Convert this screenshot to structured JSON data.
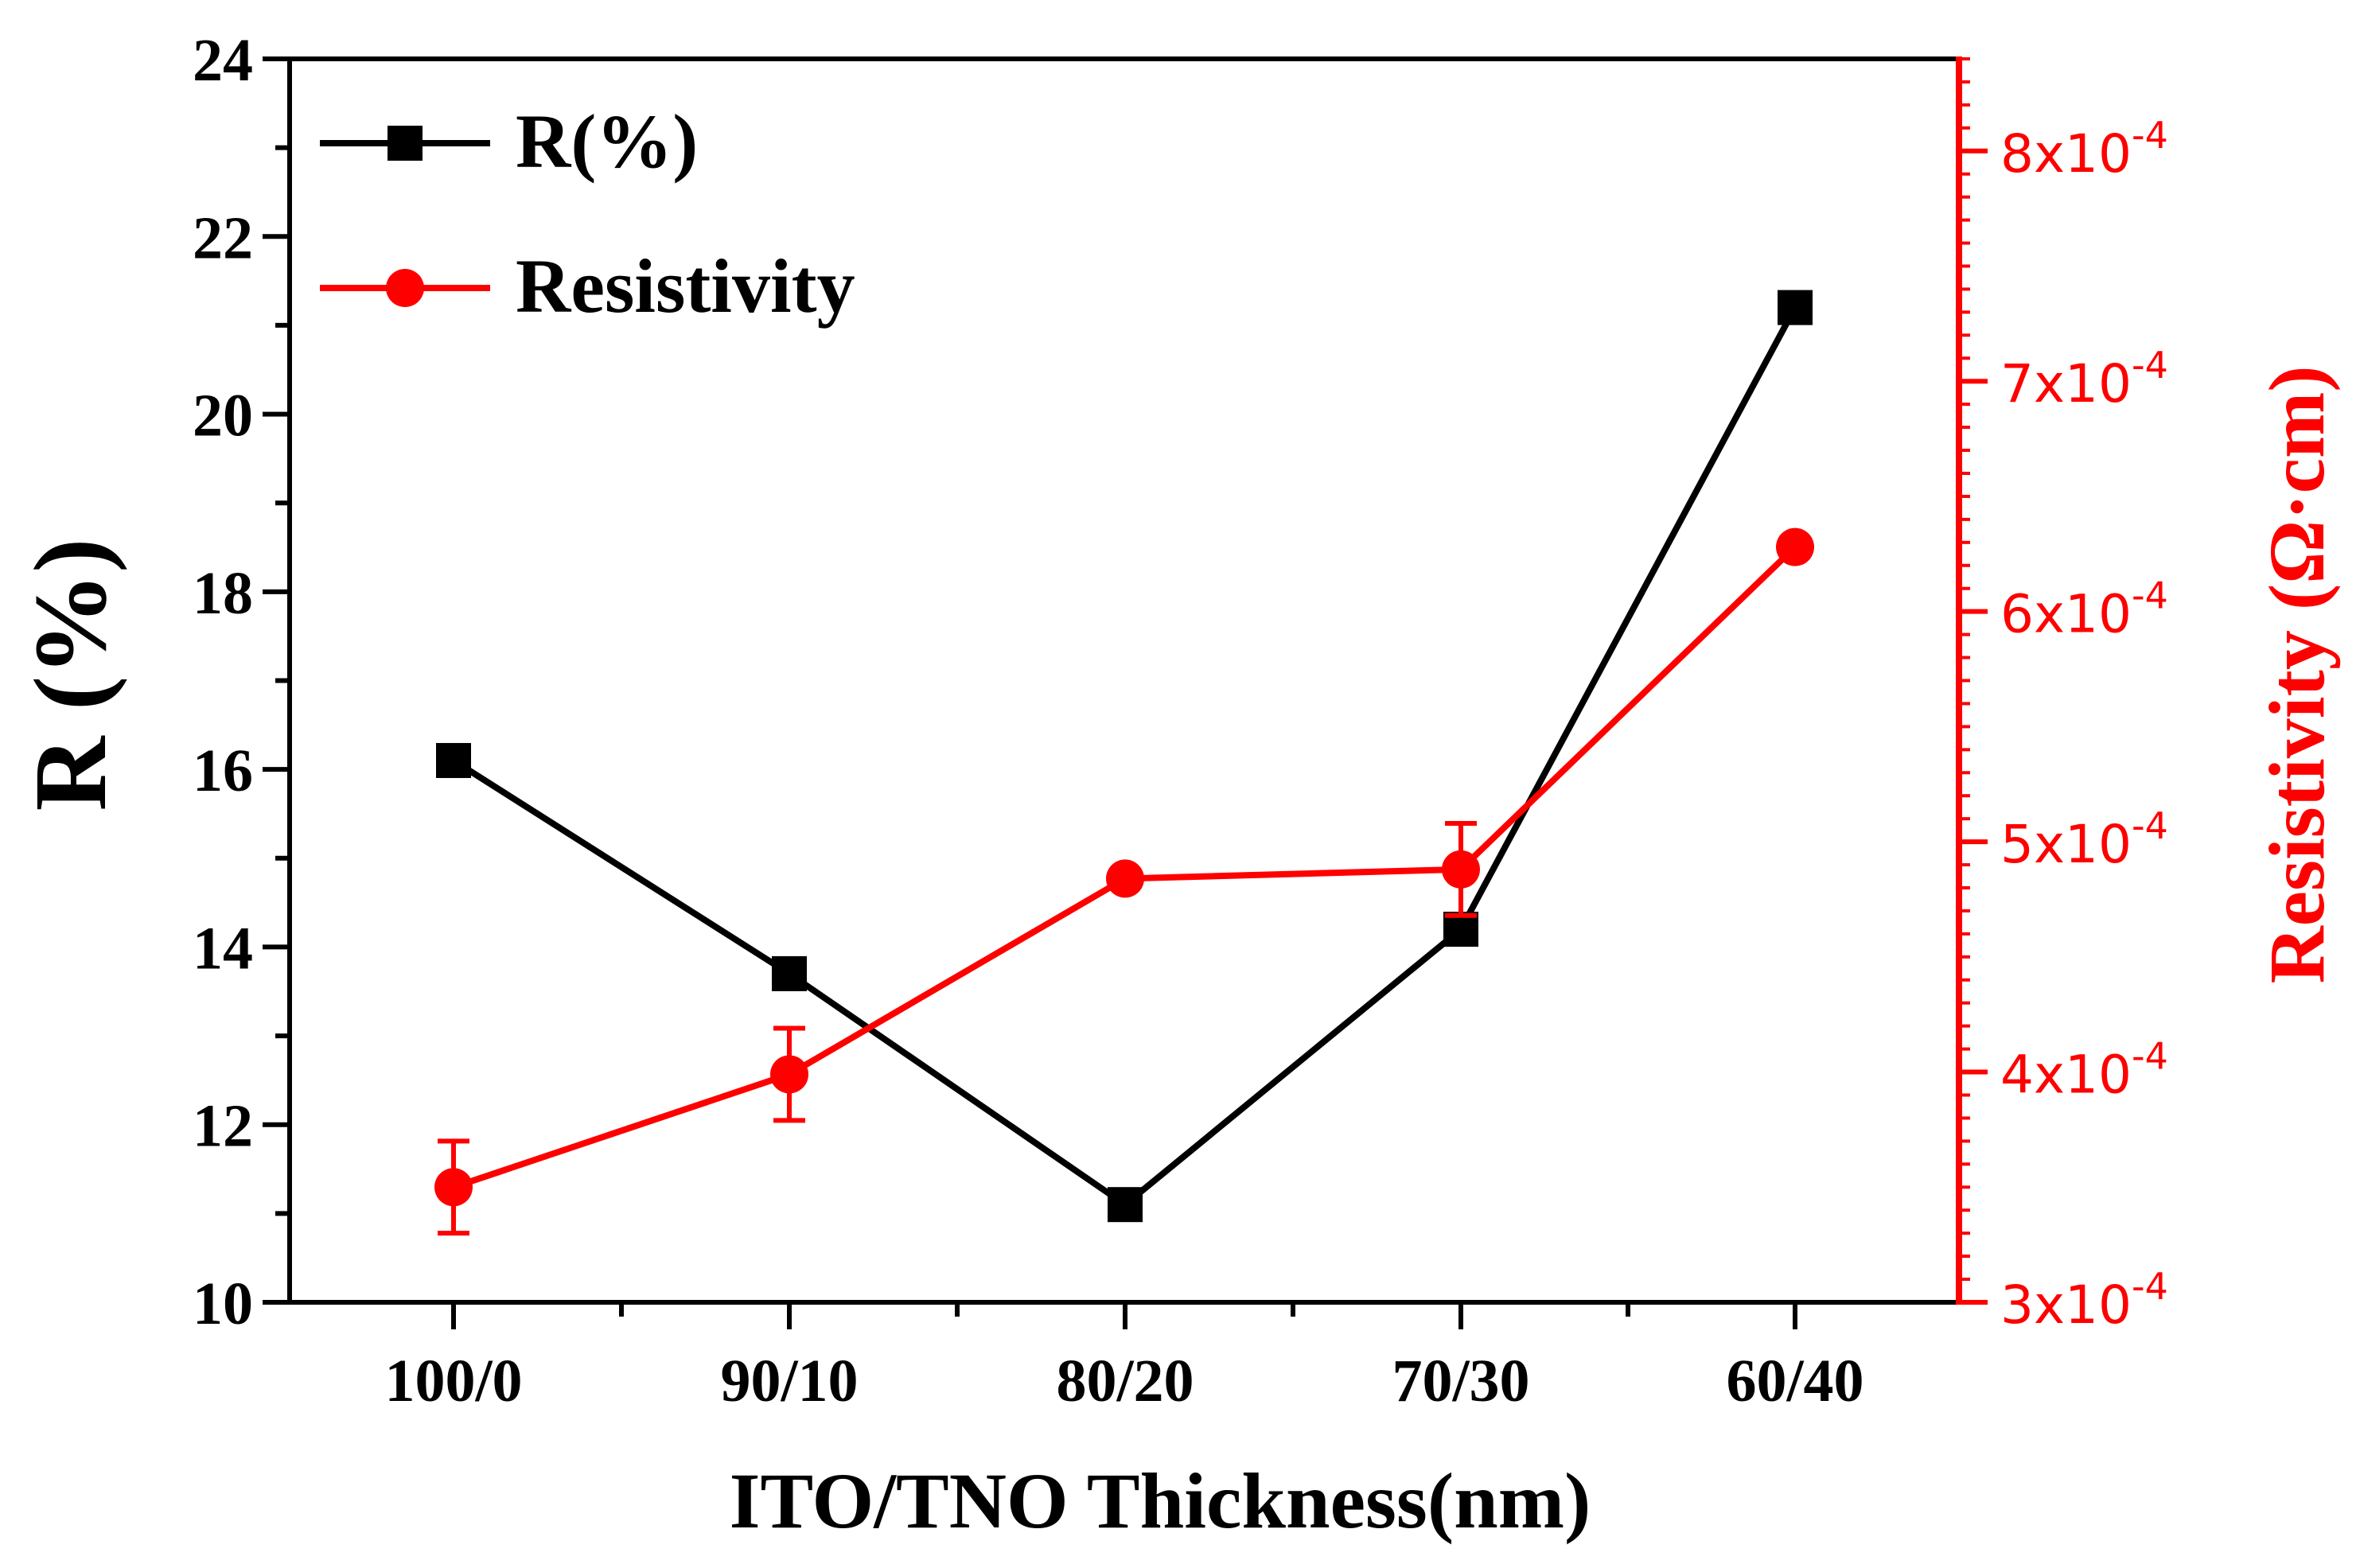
{
  "chart_data": {
    "type": "line",
    "x_label": "ITO/TNO Thickness(nm)",
    "categories": [
      "100/0",
      "90/10",
      "80/20",
      "70/30",
      "60/40"
    ],
    "left_axis": {
      "label": "R (%)",
      "range": [
        10,
        24
      ],
      "ticks": [
        10,
        12,
        14,
        16,
        18,
        20,
        22,
        24
      ],
      "tick_labels": [
        "10",
        "12",
        "14",
        "16",
        "18",
        "20",
        "22",
        "24"
      ],
      "color": "#000000"
    },
    "right_axis": {
      "label": "Resistivity (Ω·cm)",
      "range": [
        0.0003,
        0.00084
      ],
      "ticks": [
        0.0003,
        0.0004,
        0.0005,
        0.0006,
        0.0007,
        0.0008
      ],
      "tick_mantissas": [
        "3x10",
        "4x10",
        "5x10",
        "6x10",
        "7x10",
        "8x10"
      ],
      "tick_exponent": "-4",
      "color": "#ff0000"
    },
    "series": [
      {
        "name": "R(%)",
        "axis": "left",
        "marker": "square",
        "color": "#000000",
        "values": [
          16.1,
          13.7,
          11.1,
          14.2,
          21.2
        ]
      },
      {
        "name": "Resistivity",
        "axis": "right",
        "marker": "circle",
        "color": "#ff0000",
        "values": [
          0.00035,
          0.000399,
          0.000484,
          0.000488,
          0.000628
        ],
        "errors": [
          2e-05,
          2e-05,
          3e-06,
          2e-05,
          2e-06
        ]
      }
    ],
    "legend": {
      "position": "top-left",
      "entries": [
        "R(%)",
        "Resistivity"
      ]
    }
  }
}
